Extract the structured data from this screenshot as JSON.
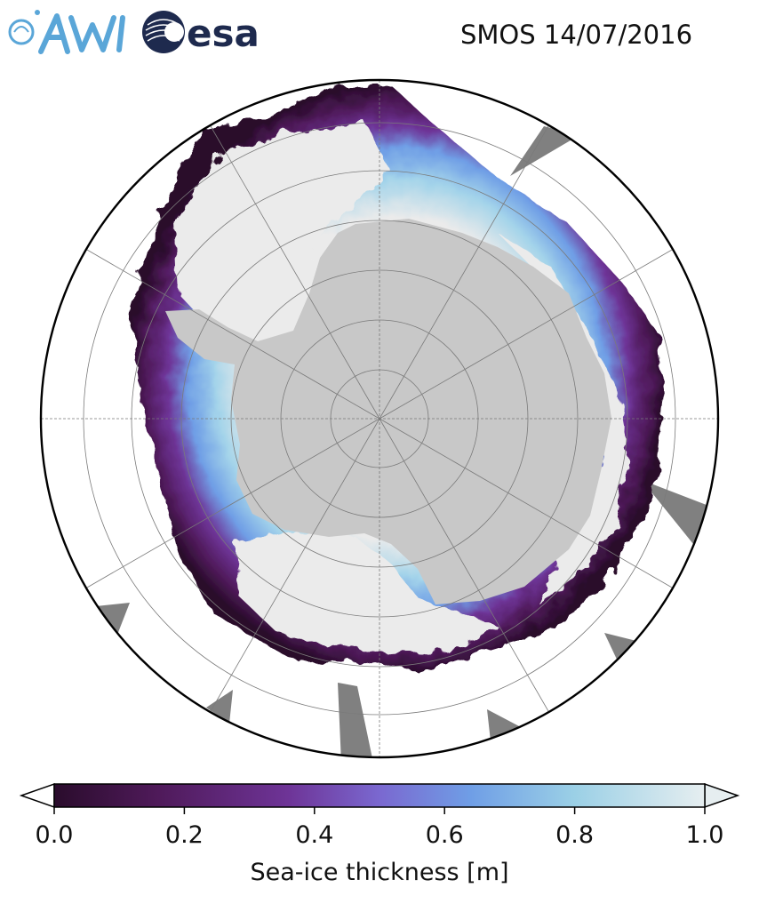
{
  "header": {
    "title": "SMOS 14/07/2016",
    "logo_left_text": "AWI",
    "logo_right_text": "esa"
  },
  "map": {
    "projection": "south-polar-stereographic",
    "ocean_color": "#ffffff",
    "land_color": "#c8c8c8",
    "ice_fill_color": "#ebebeb",
    "missing_data_color": "#808080",
    "graticule_color": "#7a7a7a"
  },
  "colorbar": {
    "label": "Sea-ice thickness [m]",
    "ticks": [
      "0.0",
      "0.2",
      "0.4",
      "0.6",
      "0.8",
      "1.0"
    ],
    "tick_values": [
      0.0,
      0.2,
      0.4,
      0.6,
      0.8,
      1.0
    ],
    "range": [
      0.0,
      1.0
    ],
    "extend": "both",
    "colormap_stops": [
      "#2a0c2c",
      "#4f1a5a",
      "#6e3497",
      "#7a68d0",
      "#6f9ee6",
      "#9bd0e6",
      "#e6eef0"
    ]
  }
}
